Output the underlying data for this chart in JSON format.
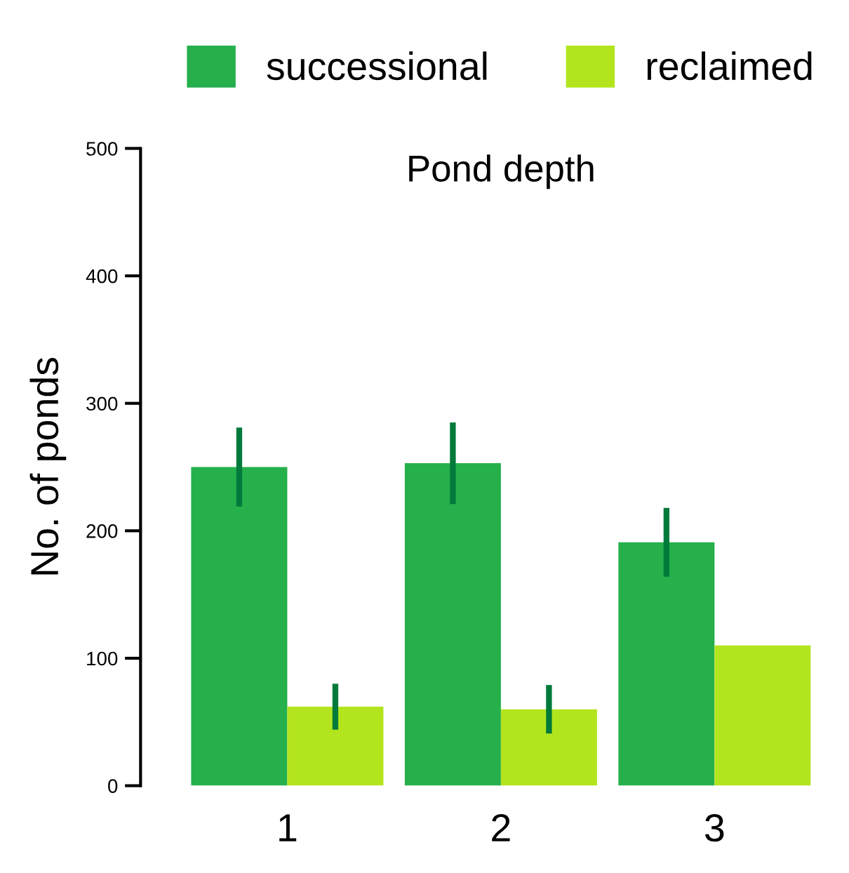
{
  "chart_data": {
    "type": "bar",
    "title": "Pond depth",
    "ylabel": "No. of ponds",
    "categories": [
      "1",
      "2",
      "3"
    ],
    "series": [
      {
        "name": "successional",
        "color": "#25b04c",
        "values": [
          250,
          253,
          191
        ],
        "errors": [
          31,
          32,
          27
        ]
      },
      {
        "name": "reclaimed",
        "color": "#b3e51e",
        "values": [
          62,
          60,
          110
        ],
        "errors": [
          18,
          19,
          null
        ]
      }
    ],
    "ylim": [
      0,
      500
    ],
    "yticks": [
      0,
      100,
      200,
      300,
      400,
      500
    ],
    "grid": false,
    "legend": "top"
  }
}
